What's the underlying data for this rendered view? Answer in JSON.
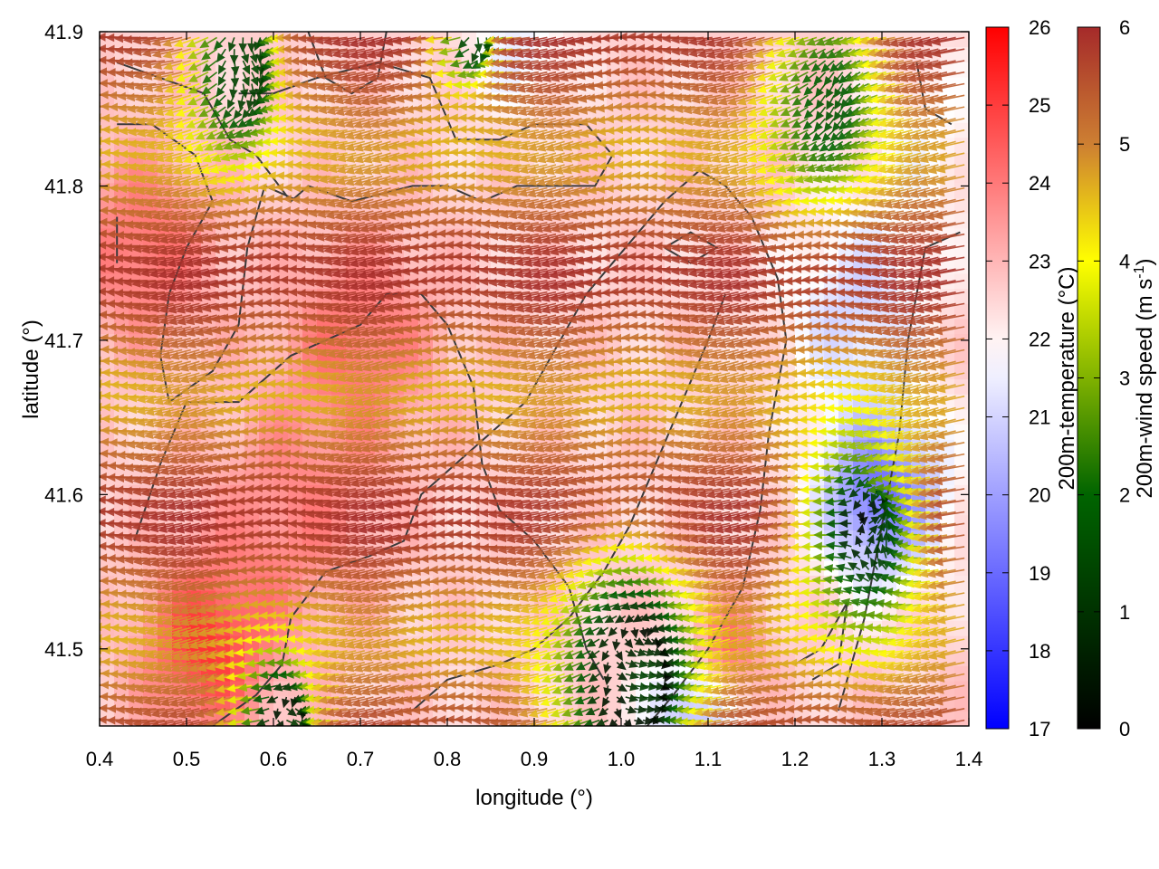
{
  "chart_data": {
    "type": "heatmap",
    "title": "",
    "xlabel": "longitude (°)",
    "ylabel": "latitude (°)",
    "xlim": [
      0.4,
      1.4
    ],
    "ylim": [
      41.45,
      41.9
    ],
    "x_ticks": [
      "0.4",
      "0.5",
      "0.6",
      "0.7",
      "0.8",
      "0.9",
      "1.0",
      "1.1",
      "1.2",
      "1.3",
      "1.4"
    ],
    "y_ticks": [
      "41.5",
      "41.6",
      "41.7",
      "41.8",
      "41.9"
    ],
    "grid": false,
    "temperature_colorbar": {
      "label": "200m-temperature (°C)",
      "range": [
        17,
        26
      ],
      "ticks": [
        "17",
        "18",
        "19",
        "20",
        "21",
        "22",
        "23",
        "24",
        "25",
        "26"
      ],
      "colors": [
        "#0000ff",
        "#ffffff",
        "#ff0000"
      ],
      "midpoint": 21.8
    },
    "wind_colorbar": {
      "label": "200m-wind speed (m s",
      "label_exp": "-1",
      "label_close": ")",
      "range": [
        0,
        6
      ],
      "ticks": [
        "0",
        "1",
        "2",
        "3",
        "4",
        "5",
        "6"
      ],
      "colors": [
        "#000000",
        "#006400",
        "#ffff00",
        "#cd7f32",
        "#a52a2a"
      ]
    },
    "temperature_field": {
      "base": 22.6,
      "features": [
        {
          "lon": 0.52,
          "lat": 41.5,
          "amp": 2.4,
          "r": 0.07
        },
        {
          "lon": 0.45,
          "lat": 41.76,
          "amp": 1.6,
          "r": 0.08
        },
        {
          "lon": 0.7,
          "lat": 41.7,
          "amp": 1.5,
          "r": 0.09
        },
        {
          "lon": 0.62,
          "lat": 41.58,
          "amp": 1.2,
          "r": 0.1
        },
        {
          "lon": 1.3,
          "lat": 41.6,
          "amp": -3.5,
          "r": 0.07
        },
        {
          "lon": 1.08,
          "lat": 41.46,
          "amp": -2.2,
          "r": 0.05
        },
        {
          "lon": 1.27,
          "lat": 41.72,
          "amp": -1.6,
          "r": 0.08
        },
        {
          "lon": 0.88,
          "lat": 41.89,
          "amp": -1.1,
          "r": 0.06
        },
        {
          "lon": 1.12,
          "lat": 41.5,
          "amp": 1.8,
          "r": 0.04
        },
        {
          "lon": 1.35,
          "lat": 41.83,
          "amp": -0.8,
          "r": 0.08
        }
      ]
    },
    "wind_field": {
      "lon_step": 0.01,
      "lat_step": 0.0075,
      "base_u": -5.2,
      "base_v": -0.6,
      "calm_zones": [
        {
          "lon": 1.25,
          "lat": 41.86,
          "r": 0.06
        },
        {
          "lon": 1.3,
          "lat": 41.58,
          "r": 0.06
        },
        {
          "lon": 1.02,
          "lat": 41.48,
          "r": 0.07
        },
        {
          "lon": 0.57,
          "lat": 41.88,
          "r": 0.05
        },
        {
          "lon": 0.62,
          "lat": 41.45,
          "r": 0.04
        },
        {
          "lon": 0.84,
          "lat": 41.9,
          "r": 0.03
        }
      ]
    },
    "contours": [
      [
        [
          0.42,
          41.88
        ],
        [
          0.52,
          41.86
        ],
        [
          0.55,
          41.83
        ],
        [
          0.58,
          41.82
        ],
        [
          0.62,
          41.79
        ],
        [
          0.64,
          41.8
        ],
        [
          0.69,
          41.79
        ],
        [
          0.76,
          41.8
        ],
        [
          0.8,
          41.8
        ],
        [
          0.84,
          41.79
        ],
        [
          0.88,
          41.8
        ],
        [
          0.93,
          41.8
        ],
        [
          0.97,
          41.8
        ],
        [
          0.99,
          41.82
        ],
        [
          0.96,
          41.84
        ],
        [
          0.94,
          41.84
        ],
        [
          0.9,
          41.84
        ],
        [
          0.86,
          41.83
        ],
        [
          0.81,
          41.83
        ],
        [
          0.78,
          41.87
        ],
        [
          0.72,
          41.88
        ],
        [
          0.65,
          41.87
        ],
        [
          0.6,
          41.86
        ],
        [
          0.56,
          41.86
        ]
      ],
      [
        [
          0.42,
          41.84
        ],
        [
          0.46,
          41.84
        ],
        [
          0.51,
          41.82
        ],
        [
          0.53,
          41.79
        ],
        [
          0.5,
          41.76
        ],
        [
          0.48,
          41.73
        ],
        [
          0.47,
          41.69
        ],
        [
          0.48,
          41.66
        ],
        [
          0.53,
          41.68
        ],
        [
          0.56,
          41.71
        ],
        [
          0.57,
          41.76
        ],
        [
          0.59,
          41.8
        ],
        [
          0.63,
          41.79
        ]
      ],
      [
        [
          0.44,
          41.57
        ],
        [
          0.47,
          41.62
        ],
        [
          0.5,
          41.66
        ],
        [
          0.56,
          41.66
        ],
        [
          0.62,
          41.69
        ],
        [
          0.66,
          41.7
        ],
        [
          0.7,
          41.71
        ],
        [
          0.73,
          41.73
        ],
        [
          0.77,
          41.73
        ],
        [
          0.8,
          41.71
        ],
        [
          0.83,
          41.67
        ],
        [
          0.84,
          41.62
        ],
        [
          0.86,
          41.59
        ],
        [
          0.9,
          41.57
        ],
        [
          0.94,
          41.54
        ],
        [
          0.96,
          41.5
        ],
        [
          0.98,
          41.48
        ]
      ],
      [
        [
          0.53,
          41.45
        ],
        [
          0.58,
          41.47
        ],
        [
          0.61,
          41.49
        ],
        [
          0.62,
          41.52
        ],
        [
          0.66,
          41.55
        ],
        [
          0.71,
          41.56
        ],
        [
          0.75,
          41.57
        ],
        [
          0.77,
          41.6
        ],
        [
          0.81,
          41.62
        ],
        [
          0.85,
          41.64
        ],
        [
          0.89,
          41.66
        ],
        [
          0.93,
          41.7
        ],
        [
          0.96,
          41.73
        ],
        [
          0.99,
          41.75
        ],
        [
          1.02,
          41.77
        ],
        [
          1.05,
          41.79
        ],
        [
          1.09,
          41.81
        ],
        [
          1.12,
          41.8
        ],
        [
          1.15,
          41.78
        ],
        [
          1.18,
          41.74
        ],
        [
          1.19,
          41.7
        ],
        [
          1.17,
          41.64
        ],
        [
          1.16,
          41.59
        ],
        [
          1.14,
          41.54
        ],
        [
          1.1,
          41.5
        ],
        [
          1.06,
          41.47
        ],
        [
          1.03,
          41.45
        ]
      ],
      [
        [
          0.76,
          41.46
        ],
        [
          0.8,
          41.48
        ],
        [
          0.86,
          41.49
        ],
        [
          0.9,
          41.5
        ],
        [
          0.94,
          41.52
        ],
        [
          0.98,
          41.55
        ],
        [
          1.01,
          41.58
        ],
        [
          1.04,
          41.62
        ],
        [
          1.07,
          41.66
        ],
        [
          1.1,
          41.7
        ],
        [
          1.12,
          41.73
        ]
      ],
      [
        [
          1.05,
          41.76
        ],
        [
          1.08,
          41.77
        ],
        [
          1.11,
          41.76
        ],
        [
          1.08,
          41.75
        ],
        [
          1.05,
          41.76
        ]
      ],
      [
        [
          1.2,
          41.49
        ],
        [
          1.23,
          41.5
        ],
        [
          1.26,
          41.53
        ],
        [
          1.25,
          41.49
        ],
        [
          1.22,
          41.48
        ]
      ],
      [
        [
          1.25,
          41.46
        ],
        [
          1.28,
          41.52
        ],
        [
          1.3,
          41.58
        ],
        [
          1.32,
          41.64
        ],
        [
          1.33,
          41.7
        ],
        [
          1.35,
          41.76
        ],
        [
          1.39,
          41.77
        ]
      ],
      [
        [
          1.34,
          41.88
        ],
        [
          1.35,
          41.85
        ],
        [
          1.38,
          41.84
        ]
      ],
      [
        [
          0.42,
          41.75
        ],
        [
          0.42,
          41.78
        ]
      ],
      [
        [
          0.64,
          41.9
        ],
        [
          0.66,
          41.87
        ],
        [
          0.69,
          41.86
        ],
        [
          0.72,
          41.87
        ],
        [
          0.73,
          41.9
        ]
      ]
    ]
  }
}
